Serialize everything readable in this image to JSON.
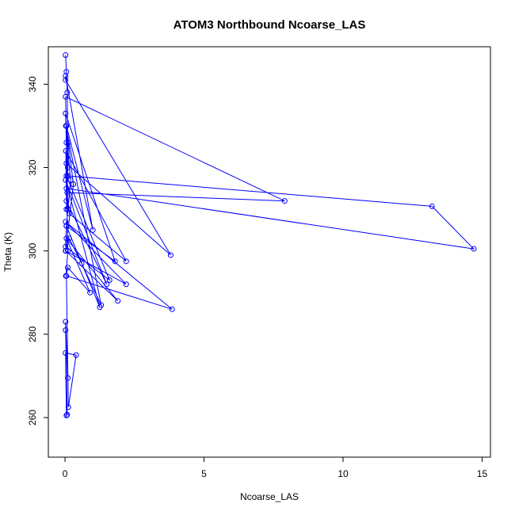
{
  "chart_data": {
    "type": "scatter",
    "title": "ATOM3 Northbound Ncoarse_LAS",
    "xlabel": "Ncoarse_LAS",
    "ylabel": "Theta (K)",
    "xlim": [
      -0.6,
      15.3
    ],
    "ylim": [
      250.5,
      349
    ],
    "x_ticks": [
      0,
      5,
      10,
      15
    ],
    "y_ticks": [
      260,
      280,
      300,
      320,
      340
    ],
    "grid": false,
    "legend": "none",
    "connect_points": true,
    "color": "#0000ff",
    "series": [
      {
        "x": [
          0.02,
          0.05,
          0.08,
          0.1,
          0.05,
          0.12,
          0.3,
          0.02,
          0.15,
          0.6,
          1.3,
          0.03,
          0.2,
          0.05,
          1.8,
          0.02,
          0.1,
          0.05,
          3.8,
          0.02,
          0.02,
          1.0,
          0.05,
          0.08,
          7.9,
          0.02,
          0.05,
          0.1,
          13.2,
          14.7,
          0.05,
          0.15,
          2.2,
          0.03,
          0.05,
          1.5,
          0.02,
          1.25,
          0.05,
          0.02,
          1.6,
          0.05,
          0.1,
          0.03,
          0.1,
          0.9,
          0.05,
          1.9,
          0.03,
          2.2,
          0.02,
          3.85,
          0.05,
          0.12,
          0.4,
          0.02,
          0.05,
          0.08,
          0.02,
          0.02,
          0.1
        ],
        "y": [
          347,
          343,
          338,
          320,
          310,
          326,
          316,
          300,
          303,
          297,
          287,
          330,
          317,
          306,
          297.5,
          333,
          310,
          321,
          299,
          341,
          342,
          305,
          330,
          314,
          312,
          337,
          326,
          318,
          310.7,
          300.5,
          315,
          309,
          297.5,
          324,
          312,
          292,
          317,
          286.5,
          306,
          301,
          293,
          318,
          300,
          294,
          296,
          290,
          303,
          288,
          300,
          292,
          307,
          286,
          294,
          262.5,
          275,
          275.5,
          260.5,
          260.7,
          281,
          283,
          269.5
        ]
      }
    ]
  }
}
